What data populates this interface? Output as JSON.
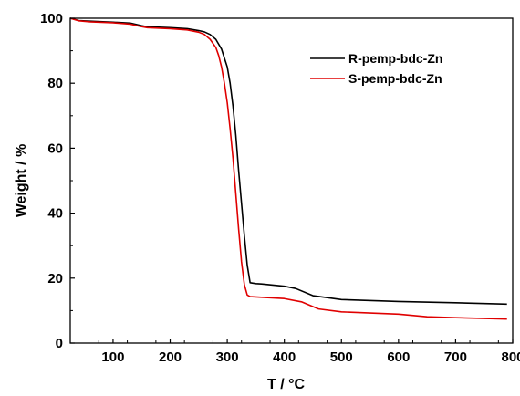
{
  "chart_data": {
    "type": "line",
    "title": "",
    "xlabel": "T / °C",
    "ylabel": "Weight / %",
    "xlim": [
      25,
      800
    ],
    "ylim": [
      0,
      100
    ],
    "xticks": [
      100,
      200,
      300,
      400,
      500,
      600,
      700,
      800
    ],
    "yticks": [
      0,
      20,
      40,
      60,
      80,
      100
    ],
    "grid": false,
    "legend_position": "top-right",
    "series": [
      {
        "name": "R-pemp-bdc-Zn",
        "color": "#000000",
        "x": [
          25,
          40,
          60,
          100,
          130,
          150,
          160,
          200,
          230,
          250,
          260,
          270,
          280,
          290,
          300,
          305,
          310,
          315,
          320,
          325,
          330,
          335,
          340,
          350,
          360,
          400,
          420,
          450,
          500,
          600,
          700,
          790
        ],
        "y": [
          100,
          99.3,
          99.1,
          98.8,
          98.5,
          97.7,
          97.4,
          97.1,
          96.8,
          96.2,
          95.8,
          95,
          93.5,
          90.5,
          85,
          80,
          73,
          64,
          53,
          43,
          33,
          24,
          18.6,
          18.3,
          18.2,
          17.5,
          16.8,
          14.6,
          13.4,
          12.8,
          12.4,
          12.0
        ]
      },
      {
        "name": "S-pemp-bdc-Zn",
        "color": "#e00000",
        "x": [
          25,
          40,
          60,
          100,
          130,
          150,
          160,
          200,
          230,
          250,
          260,
          270,
          280,
          285,
          290,
          295,
          300,
          305,
          310,
          315,
          320,
          325,
          330,
          335,
          340,
          360,
          400,
          430,
          460,
          500,
          600,
          650,
          700,
          790
        ],
        "y": [
          100,
          99.2,
          98.9,
          98.6,
          98.2,
          97.4,
          97.1,
          96.8,
          96.4,
          95.7,
          95,
          93.5,
          91,
          88.5,
          85,
          80,
          74,
          66,
          57,
          46,
          35,
          25,
          18,
          14.8,
          14.3,
          14.1,
          13.7,
          12.7,
          10.5,
          9.6,
          8.9,
          8.1,
          7.8,
          7.4
        ]
      }
    ]
  }
}
